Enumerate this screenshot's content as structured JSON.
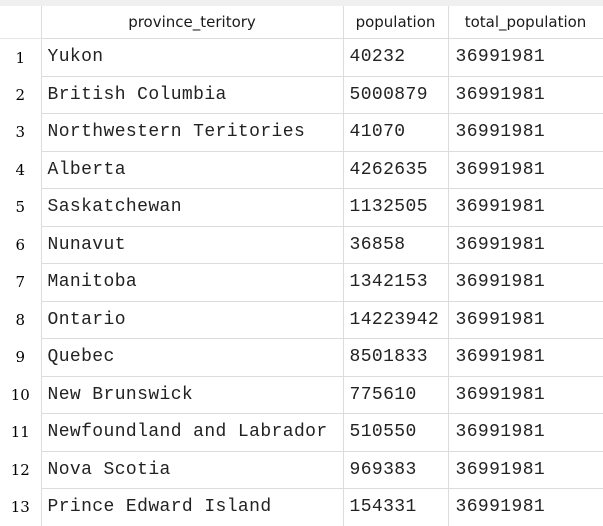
{
  "table": {
    "columns": [
      "province_teritory",
      "population",
      "total_population"
    ],
    "rows": [
      {
        "index": "1",
        "province_teritory": "Yukon",
        "population": "40232",
        "total_population": "36991981"
      },
      {
        "index": "2",
        "province_teritory": "British Columbia",
        "population": "5000879",
        "total_population": "36991981"
      },
      {
        "index": "3",
        "province_teritory": "Northwestern Teritories",
        "population": "41070",
        "total_population": "36991981"
      },
      {
        "index": "4",
        "province_teritory": "Alberta",
        "population": "4262635",
        "total_population": "36991981"
      },
      {
        "index": "5",
        "province_teritory": "Saskatchewan",
        "population": "1132505",
        "total_population": "36991981"
      },
      {
        "index": "6",
        "province_teritory": "Nunavut",
        "population": "36858",
        "total_population": "36991981"
      },
      {
        "index": "7",
        "province_teritory": "Manitoba",
        "population": "1342153",
        "total_population": "36991981"
      },
      {
        "index": "8",
        "province_teritory": "Ontario",
        "population": "14223942",
        "total_population": "36991981"
      },
      {
        "index": "9",
        "province_teritory": "Quebec",
        "population": "8501833",
        "total_population": "36991981"
      },
      {
        "index": "10",
        "province_teritory": "New Brunswick",
        "population": "775610",
        "total_population": "36991981"
      },
      {
        "index": "11",
        "province_teritory": "Newfoundland and Labrador",
        "population": "510550",
        "total_population": "36991981"
      },
      {
        "index": "12",
        "province_teritory": "Nova Scotia",
        "population": "969383",
        "total_population": "36991981"
      },
      {
        "index": "13",
        "province_teritory": "Prince Edward Island",
        "population": "154331",
        "total_population": "36991981"
      }
    ]
  }
}
